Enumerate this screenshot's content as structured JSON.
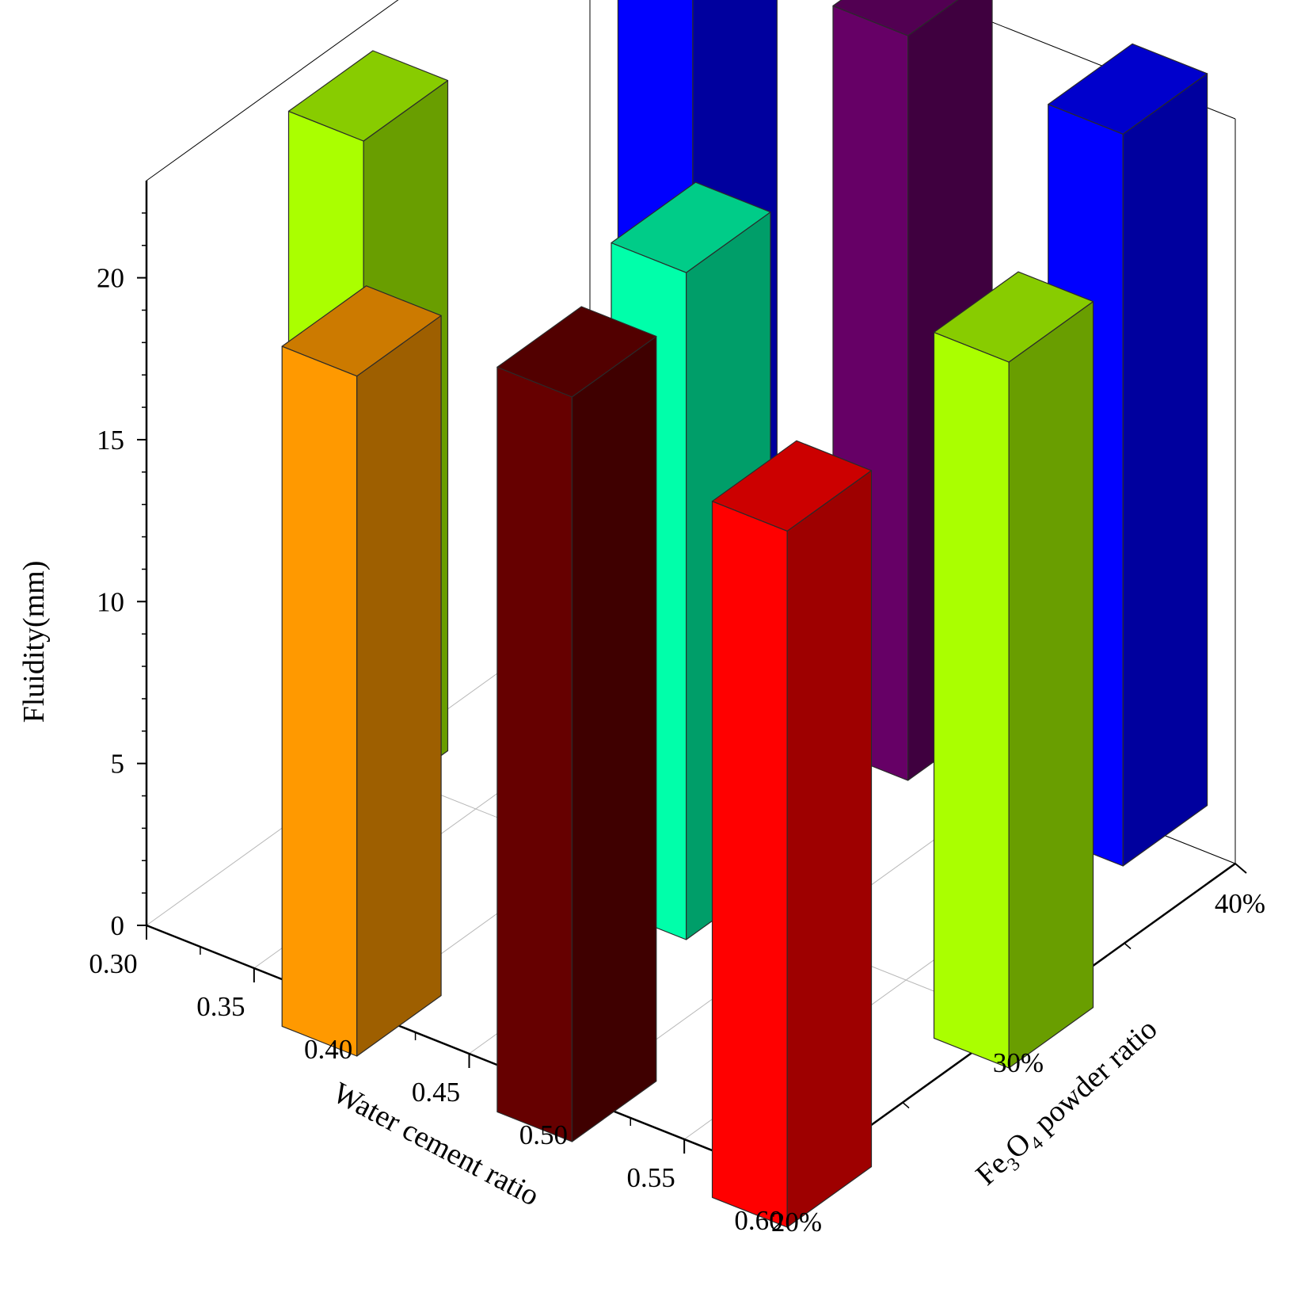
{
  "chart_data": {
    "type": "bar3d",
    "title": "",
    "zlabel": "Fluidity(mm)",
    "xlabel": "Water cement ratio",
    "ylabel": {
      "pre": "Fe",
      "sub1": "3",
      "mid": "O",
      "sub2": "4",
      "post": " powder ratio"
    },
    "x_ticks": [
      "0.30",
      "0.35",
      "0.40",
      "0.45",
      "0.50",
      "0.55",
      "0.60"
    ],
    "y_ticks": [
      "20%",
      "30%",
      "40%"
    ],
    "z_ticks": [
      "0",
      "5",
      "10",
      "15",
      "20"
    ],
    "zlim": [
      0,
      23
    ],
    "grid": true,
    "bars": [
      {
        "wc": 0.35,
        "fe": "40%",
        "value": 22.2,
        "color": "#0000ff"
      },
      {
        "wc": 0.45,
        "fe": "40%",
        "value": 23.0,
        "color": "#660066"
      },
      {
        "wc": 0.55,
        "fe": "40%",
        "value": 22.6,
        "color": "#0000ff"
      },
      {
        "wc": 0.3,
        "fe": "30%",
        "value": 20.7,
        "color": "#aaff00"
      },
      {
        "wc": 0.45,
        "fe": "30%",
        "value": 20.6,
        "color": "#00ffaa"
      },
      {
        "wc": 0.6,
        "fe": "30%",
        "value": 21.8,
        "color": "#aaff00"
      },
      {
        "wc": 0.4,
        "fe": "20%",
        "value": 21.0,
        "color": "#ff9900"
      },
      {
        "wc": 0.5,
        "fe": "20%",
        "value": 23.0,
        "color": "#660000"
      },
      {
        "wc": 0.6,
        "fe": "20%",
        "value": 21.5,
        "color": "#ff0000"
      }
    ]
  }
}
